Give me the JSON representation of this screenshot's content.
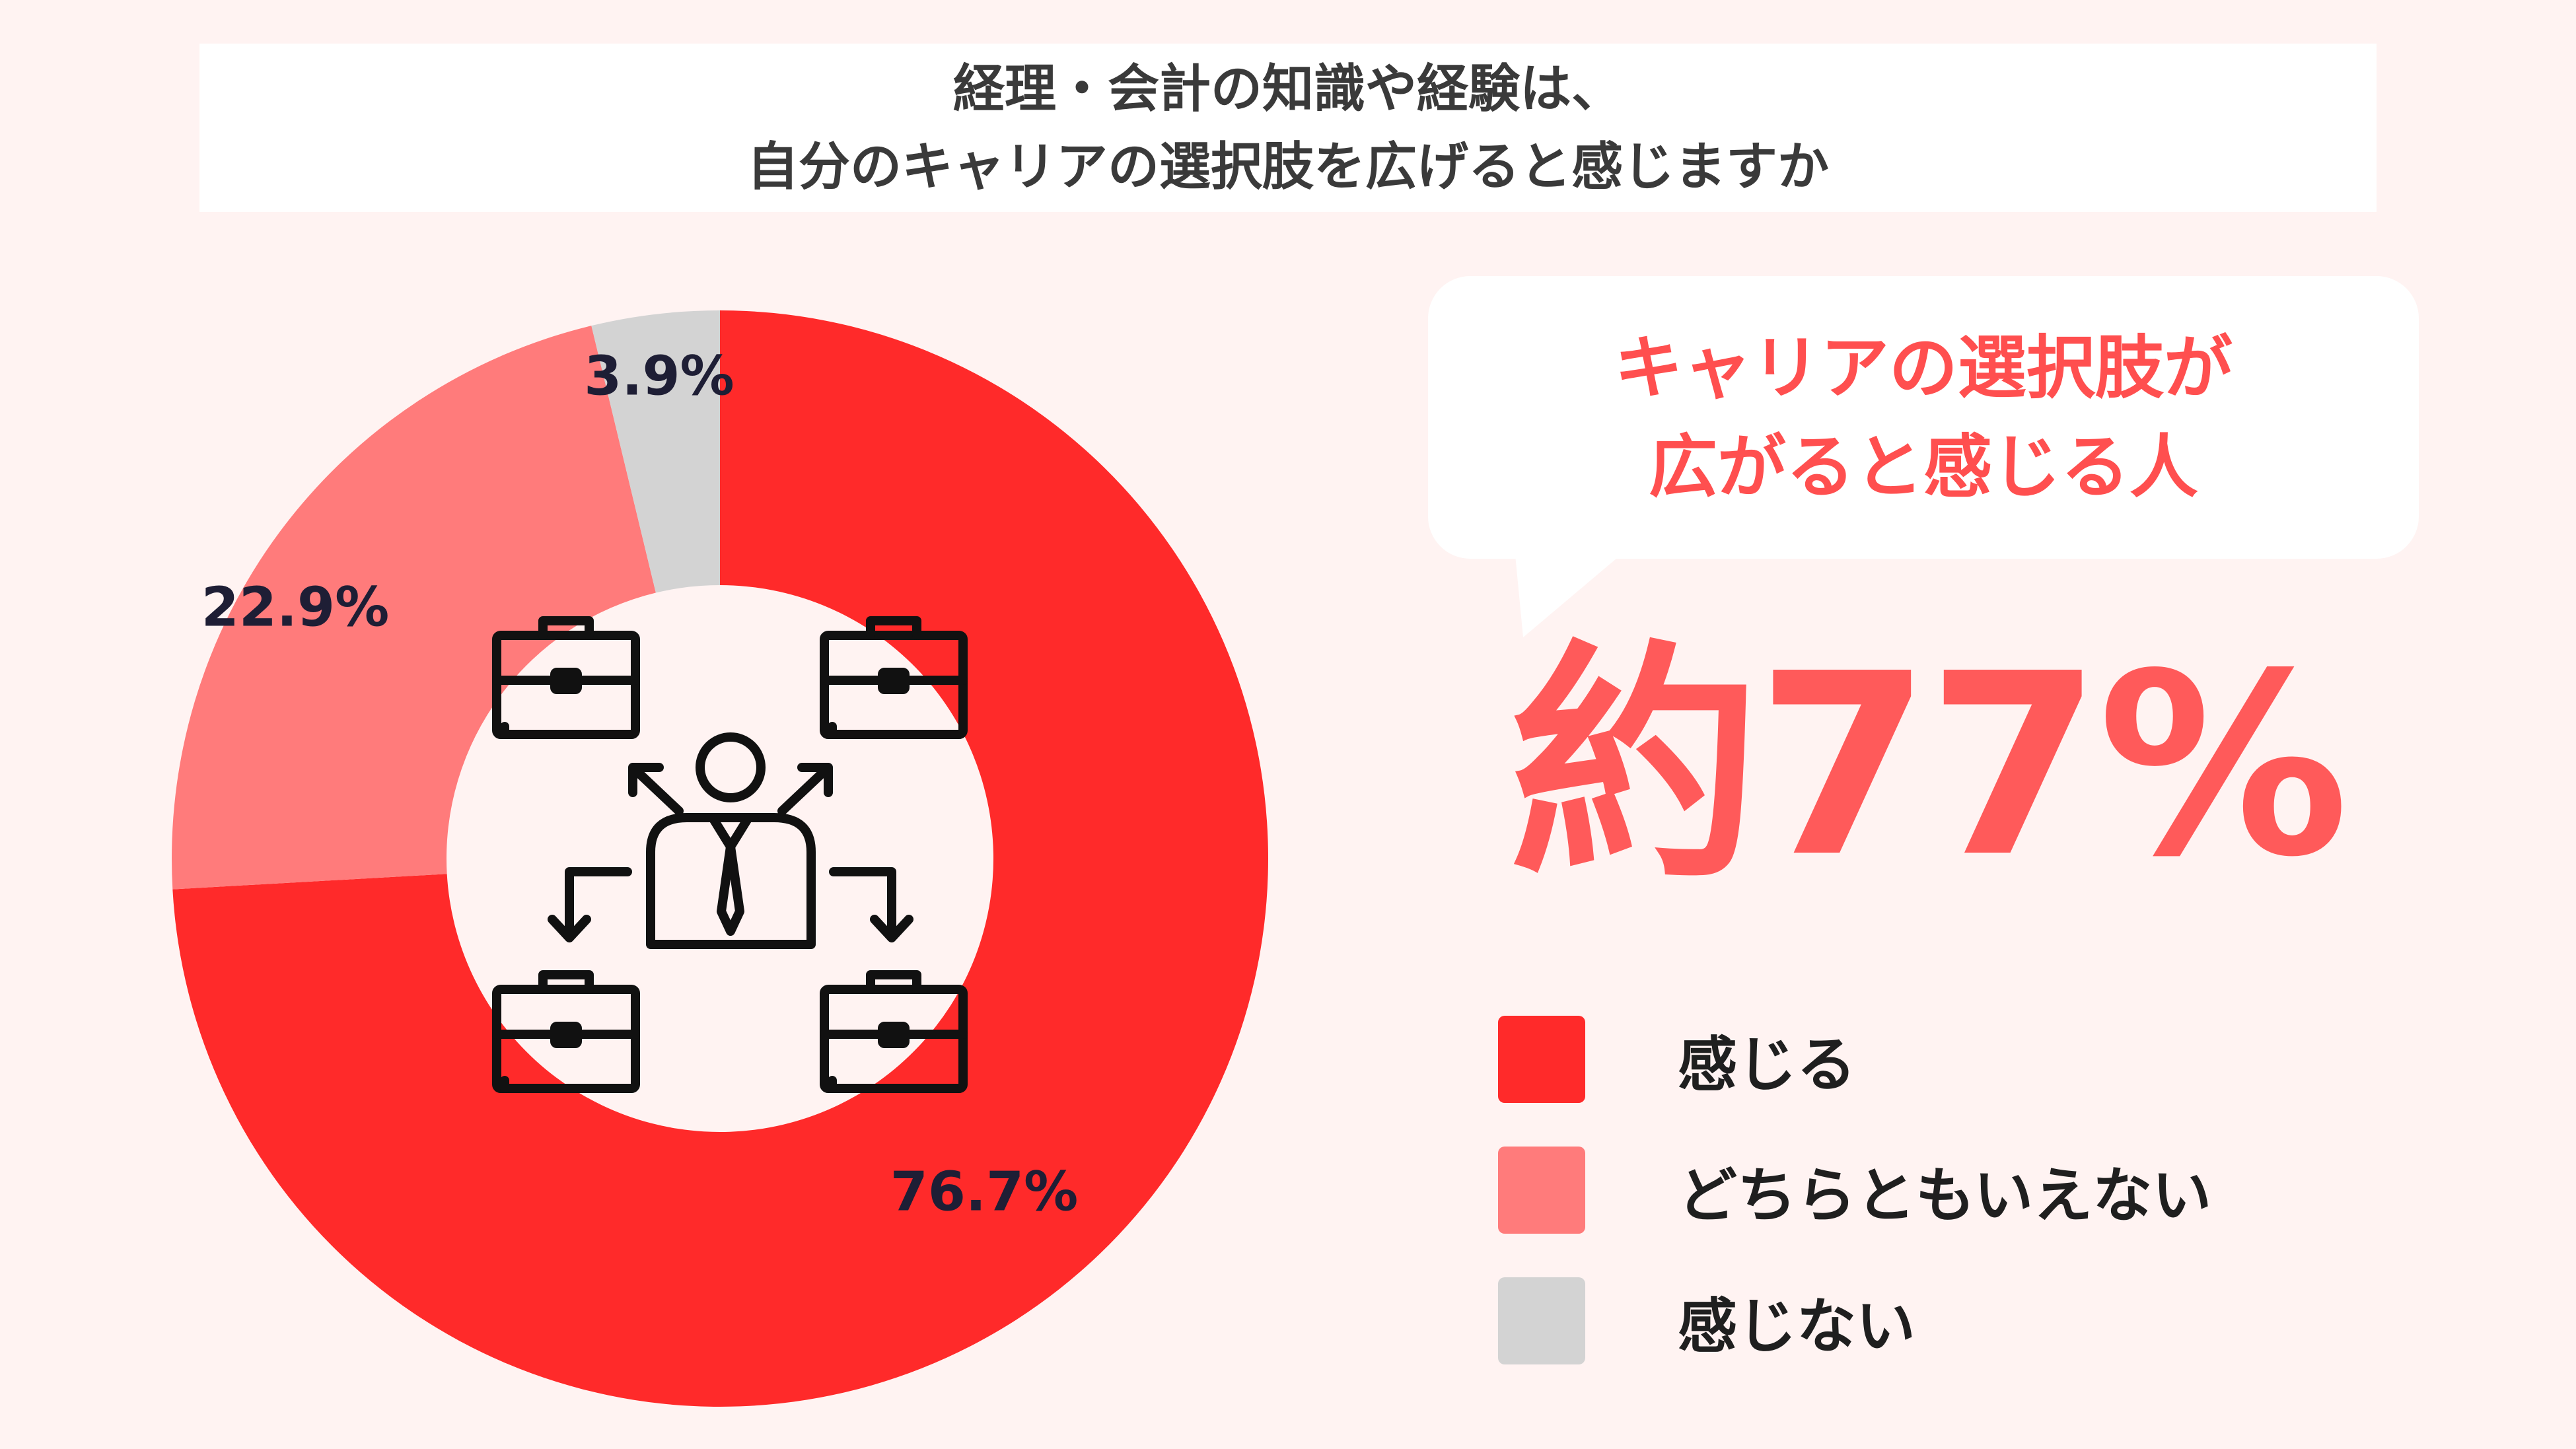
{
  "title": {
    "line1": "経理・会計の知識や経験は、",
    "line2": "自分のキャリアの選択肢を広げると感じますか"
  },
  "callout": {
    "line1": "キャリアの選択肢が",
    "line2": "広がると感じる人",
    "value": "約77%"
  },
  "center_icon": "person-with-briefcases-choice-icon",
  "chart_data": {
    "type": "pie",
    "donut": true,
    "unit": "%",
    "start": "12 o'clock, clockwise",
    "labels": [
      "感じる",
      "どちらともいえない",
      "感じない"
    ],
    "values": [
      76.7,
      22.9,
      3.9
    ],
    "value_labels": [
      "76.7%",
      "22.9%",
      "3.9%"
    ],
    "colors": [
      "#ff2a2a",
      "#ff7b7b",
      "#d3d3d3"
    ],
    "legend": "right"
  }
}
